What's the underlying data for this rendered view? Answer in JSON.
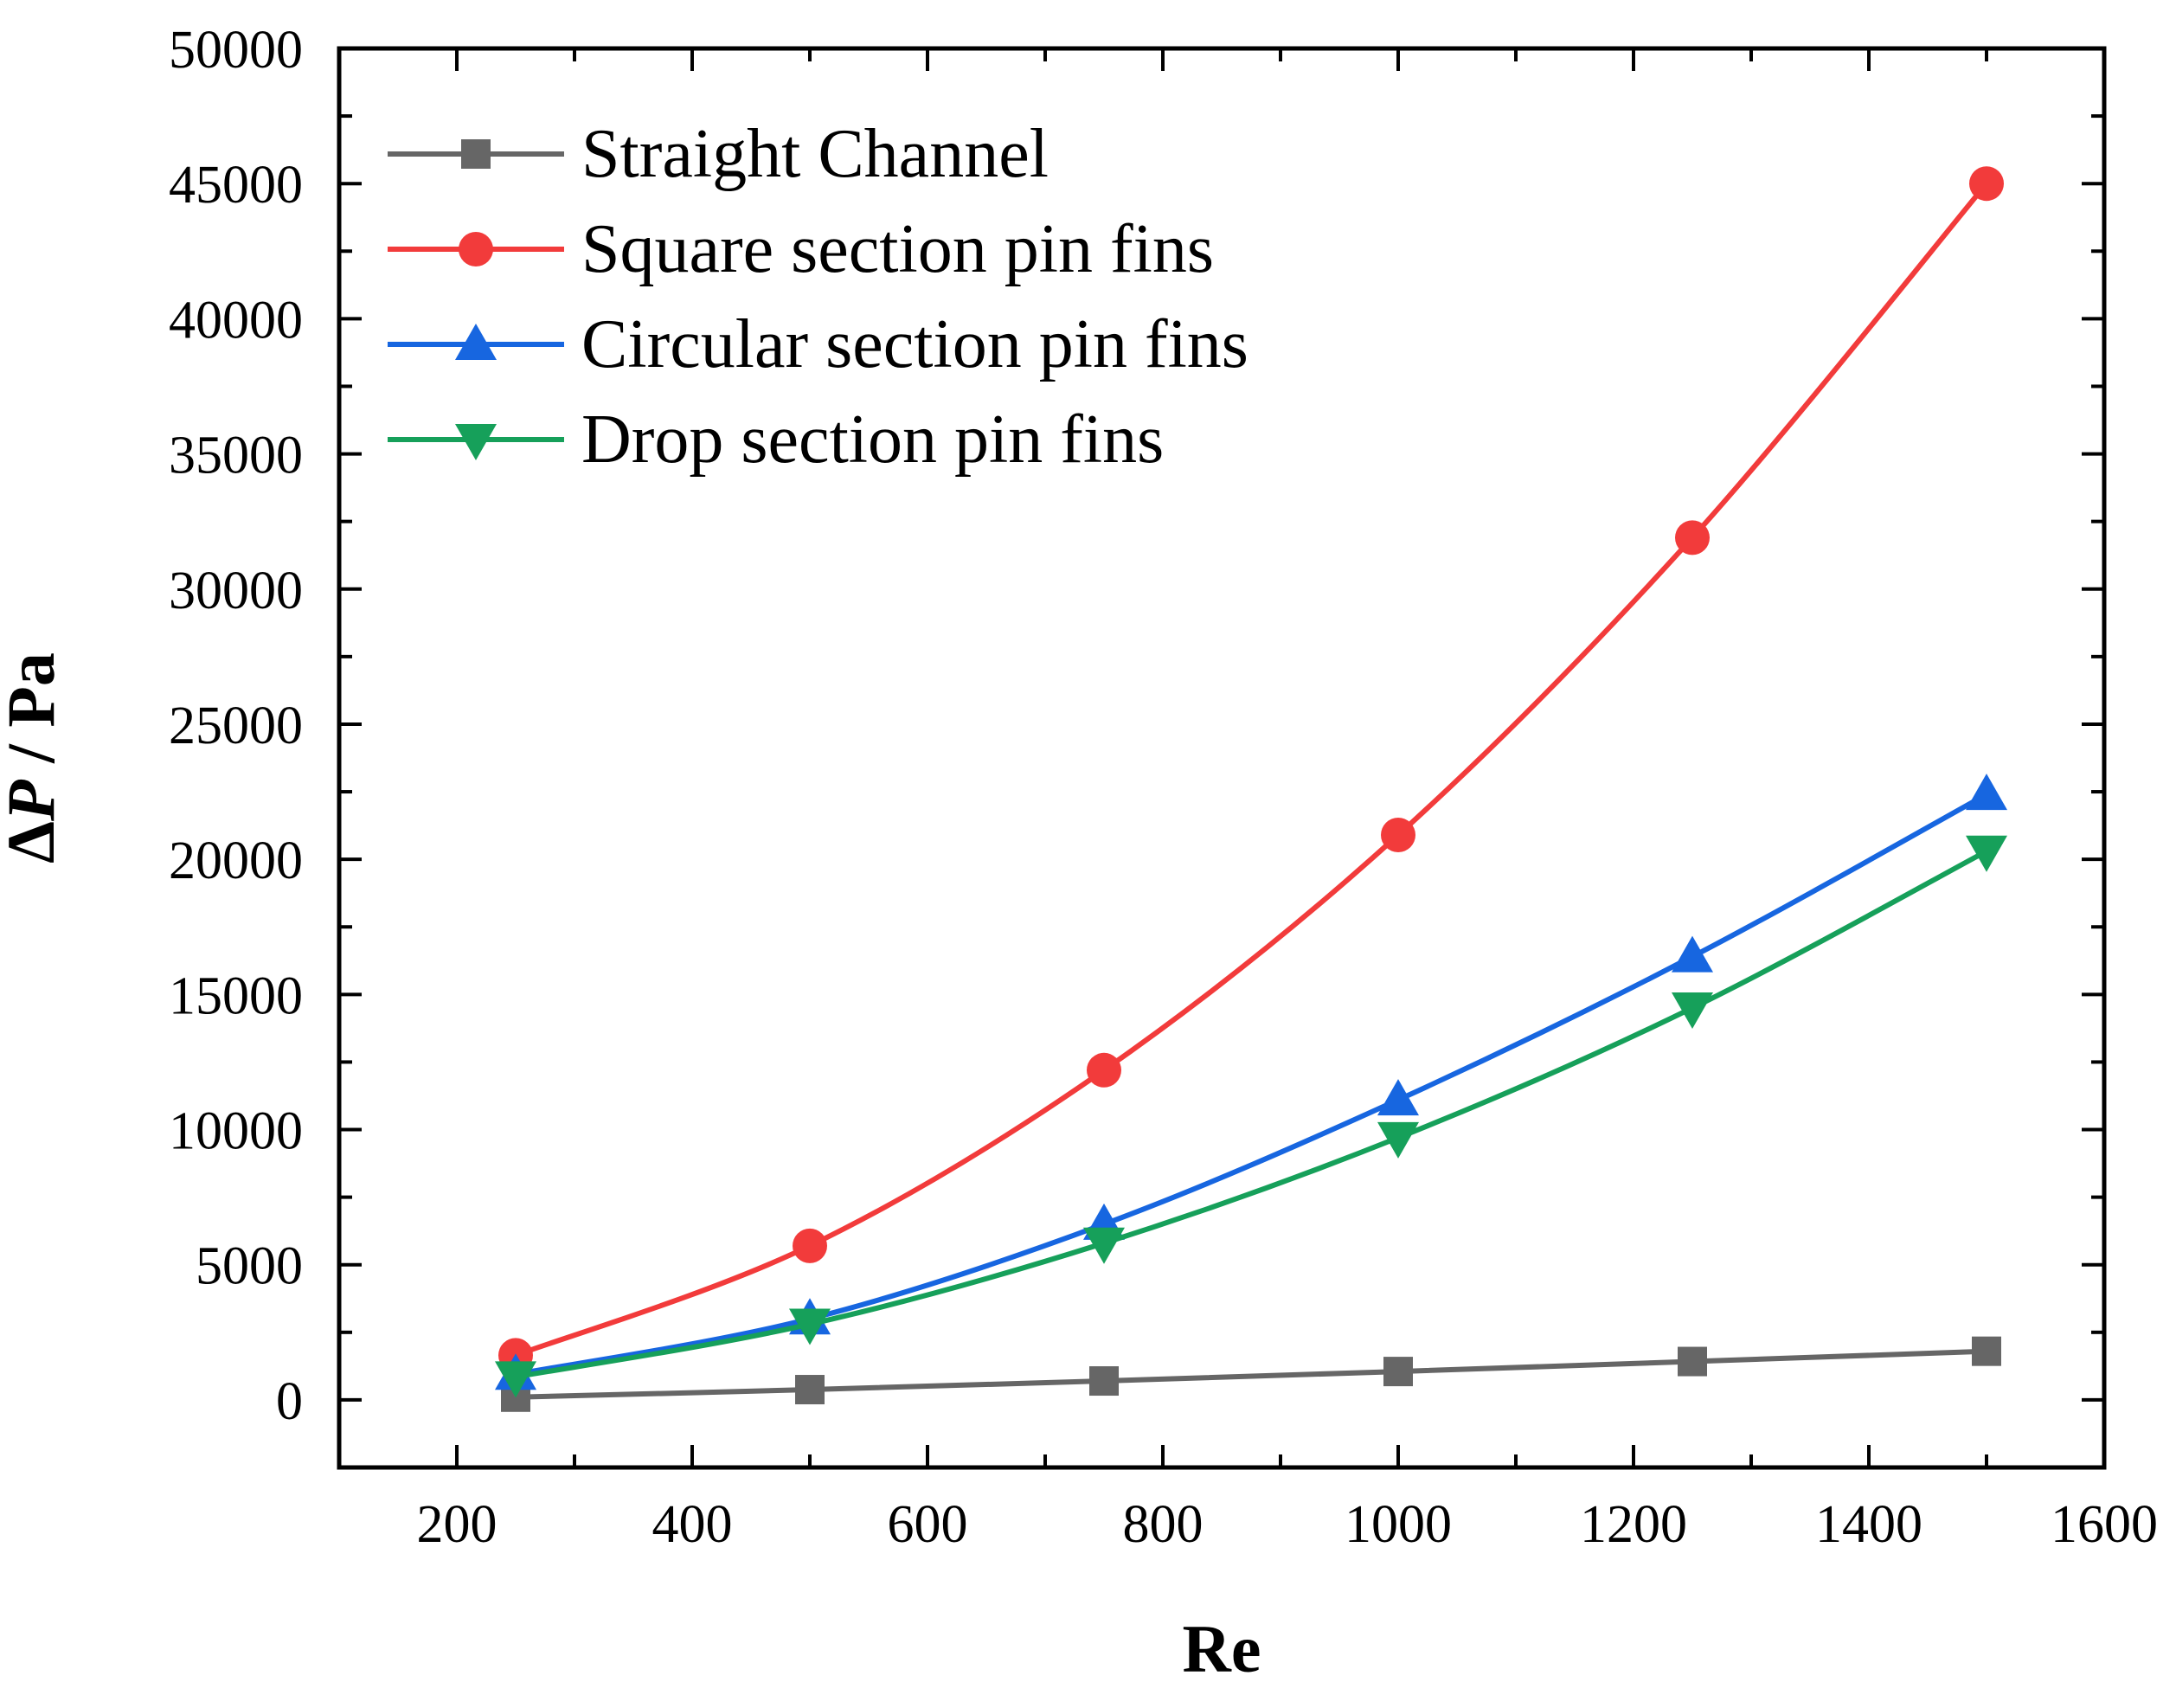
{
  "chart_data": {
    "type": "line",
    "title": "",
    "xlabel": "Re",
    "ylabel_prefix": "Δ",
    "ylabel_symbol": "P",
    "ylabel_suffix": " / Pa",
    "xlim": [
      100,
      1600
    ],
    "ylim": [
      -2500,
      50000
    ],
    "x_ticks": [
      200,
      400,
      600,
      800,
      1000,
      1200,
      1400,
      1600
    ],
    "y_ticks": [
      0,
      5000,
      10000,
      15000,
      20000,
      25000,
      30000,
      35000,
      40000,
      45000,
      50000
    ],
    "legend_position": "top-left",
    "x": [
      250,
      500,
      750,
      1000,
      1250,
      1500
    ],
    "series": [
      {
        "name": "Straight Channel",
        "color": "#666666",
        "marker": "square",
        "values": [
          100,
          380,
          700,
          1050,
          1420,
          1800
        ]
      },
      {
        "name": "Square section pin fins",
        "color": "#f23b3b",
        "marker": "circle",
        "values": [
          1650,
          5700,
          12200,
          20900,
          31900,
          45000
        ]
      },
      {
        "name": "Circular section pin fins",
        "color": "#1766e0",
        "marker": "triangle-up",
        "values": [
          950,
          3000,
          6500,
          11100,
          16400,
          22400
        ]
      },
      {
        "name": "Drop section pin fins",
        "color": "#16a05a",
        "marker": "triangle-down",
        "values": [
          850,
          2800,
          5800,
          9700,
          14500,
          20300
        ]
      }
    ]
  }
}
